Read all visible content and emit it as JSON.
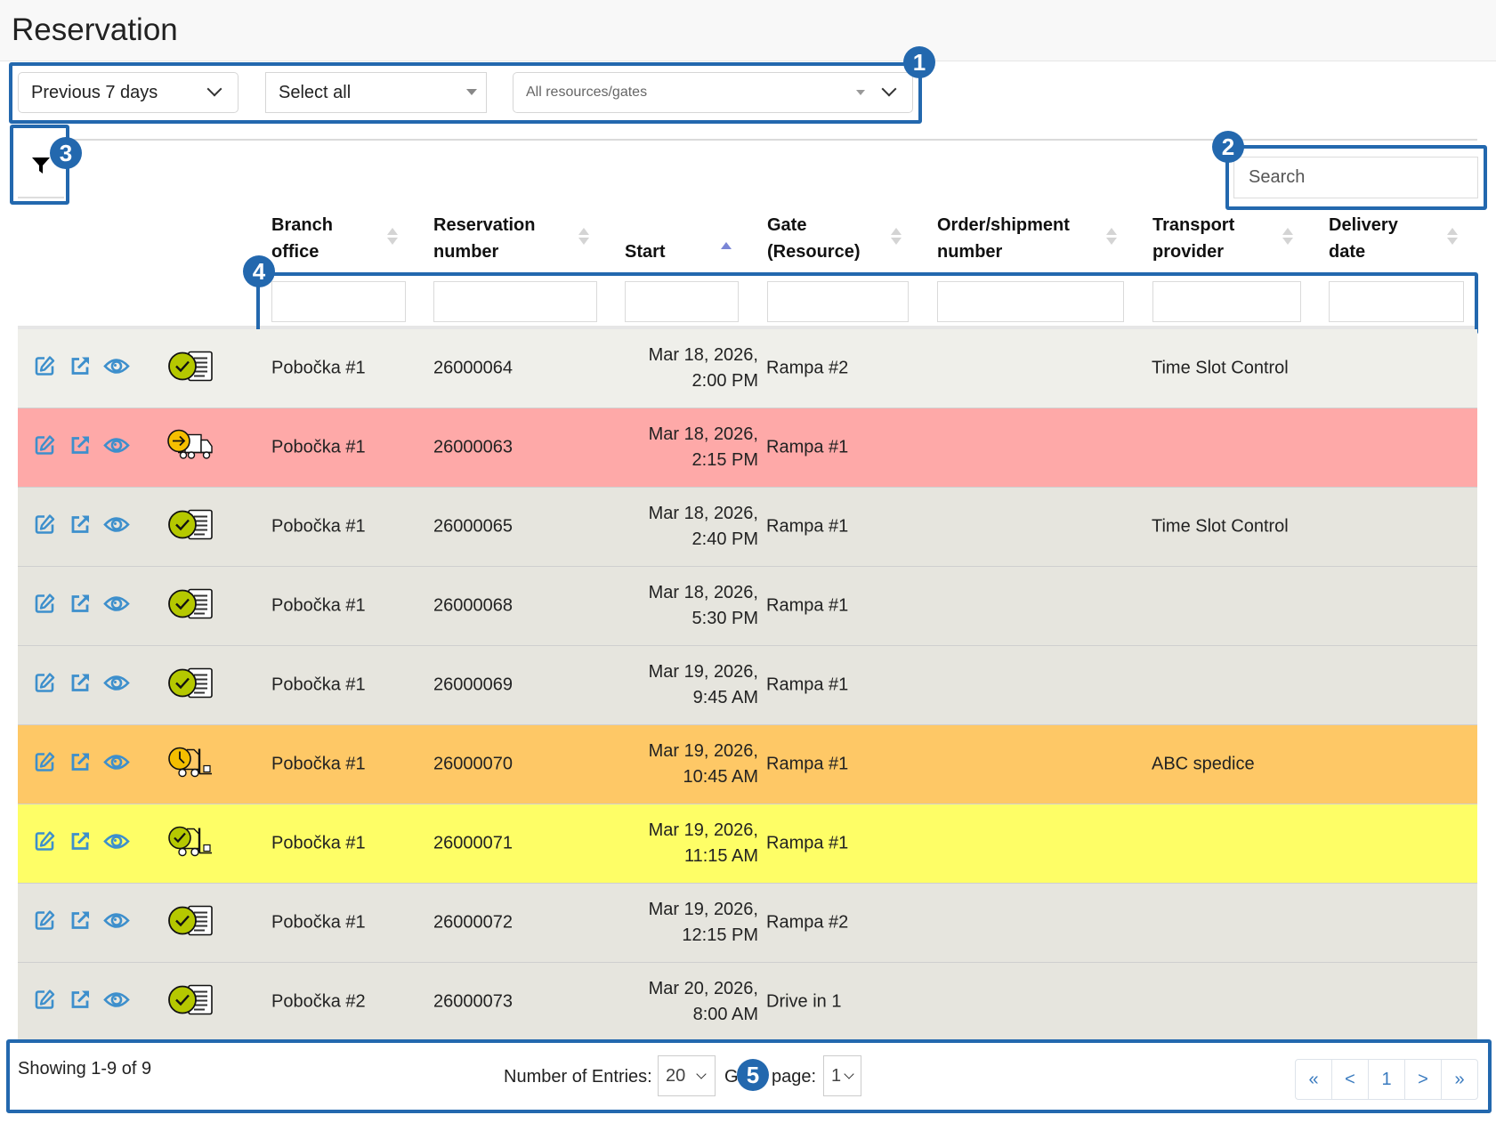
{
  "page": {
    "title": "Reservation"
  },
  "filters": {
    "period": {
      "value": "Previous 7 days"
    },
    "branch": {
      "value": "Select all"
    },
    "resources": {
      "placeholder": "All resources/gates"
    }
  },
  "toolbar": {
    "filter_icon": "funnel-icon"
  },
  "search": {
    "placeholder": "Search"
  },
  "annotations": [
    "1",
    "2",
    "3",
    "4",
    "5"
  ],
  "table": {
    "columns": [
      {
        "line1": "Branch",
        "line2": "office",
        "sort": "none"
      },
      {
        "line1": "Reservation",
        "line2": "number",
        "sort": "none"
      },
      {
        "line1": "",
        "line2": "Start",
        "sort": "asc"
      },
      {
        "line1": "Gate",
        "line2": "(Resource)",
        "sort": "none"
      },
      {
        "line1": "Order/shipment",
        "line2": "number",
        "sort": "none"
      },
      {
        "line1": "Transport",
        "line2": "provider",
        "sort": "none"
      },
      {
        "line1": "Delivery",
        "line2": "date",
        "sort": "none"
      }
    ],
    "rows": [
      {
        "status_icon": "checked-document-icon",
        "color": "#efefea",
        "branch": "Pobočka #1",
        "number": "26000064",
        "start_date": "Mar 18, 2026,",
        "start_time": "2:00 PM",
        "gate": "Rampa #2",
        "order": "",
        "provider": "Time Slot Control",
        "delivery": ""
      },
      {
        "status_icon": "arrival-truck-icon",
        "color": "#fea9a8",
        "branch": "Pobočka #1",
        "number": "26000063",
        "start_date": "Mar 18, 2026,",
        "start_time": "2:15 PM",
        "gate": "Rampa #1",
        "order": "",
        "provider": "",
        "delivery": ""
      },
      {
        "status_icon": "checked-document-icon",
        "color": "#e6e5de",
        "branch": "Pobočka #1",
        "number": "26000065",
        "start_date": "Mar 18, 2026,",
        "start_time": "2:40 PM",
        "gate": "Rampa #1",
        "order": "",
        "provider": "Time Slot Control",
        "delivery": ""
      },
      {
        "status_icon": "checked-document-icon",
        "color": "#e6e5de",
        "branch": "Pobočka #1",
        "number": "26000068",
        "start_date": "Mar 18, 2026,",
        "start_time": "5:30 PM",
        "gate": "Rampa #1",
        "order": "",
        "provider": "",
        "delivery": ""
      },
      {
        "status_icon": "checked-document-icon",
        "color": "#e6e5de",
        "branch": "Pobočka #1",
        "number": "26000069",
        "start_date": "Mar 19, 2026,",
        "start_time": "9:45 AM",
        "gate": "Rampa #1",
        "order": "",
        "provider": "",
        "delivery": ""
      },
      {
        "status_icon": "clock-forklift-icon",
        "color": "#fec866",
        "branch": "Pobočka #1",
        "number": "26000070",
        "start_date": "Mar 19, 2026,",
        "start_time": "10:45 AM",
        "gate": "Rampa #1",
        "order": "",
        "provider": "ABC spedice",
        "delivery": ""
      },
      {
        "status_icon": "checked-forklift-icon",
        "color": "#fefe66",
        "branch": "Pobočka #1",
        "number": "26000071",
        "start_date": "Mar 19, 2026,",
        "start_time": "11:15 AM",
        "gate": "Rampa #1",
        "order": "",
        "provider": "",
        "delivery": ""
      },
      {
        "status_icon": "checked-document-icon",
        "color": "#e6e5de",
        "branch": "Pobočka #1",
        "number": "26000072",
        "start_date": "Mar 19, 2026,",
        "start_time": "12:15 PM",
        "gate": "Rampa #2",
        "order": "",
        "provider": "",
        "delivery": ""
      },
      {
        "status_icon": "checked-document-icon",
        "color": "#e6e5de",
        "branch": "Pobočka #2",
        "number": "26000073",
        "start_date": "Mar 20, 2026,",
        "start_time": "8:00 AM",
        "gate": "Drive in 1",
        "order": "",
        "provider": "",
        "delivery": ""
      }
    ],
    "row_actions": [
      "edit-icon",
      "open-external-icon",
      "view-icon"
    ]
  },
  "pagination": {
    "summary": "Showing 1-9 of 9",
    "entries_label": "Number of Entries:",
    "entries_value": "20",
    "goto_label_prefix": "G",
    "goto_label_suffix": "page:",
    "goto_value": "1",
    "buttons": [
      "«",
      "<",
      "1",
      ">",
      "»"
    ]
  },
  "colors": {
    "accent": "#2368ae",
    "icon_blue": "#3d8fcc",
    "check_green": "#b5c800",
    "clock_yellow": "#f5bf00"
  }
}
